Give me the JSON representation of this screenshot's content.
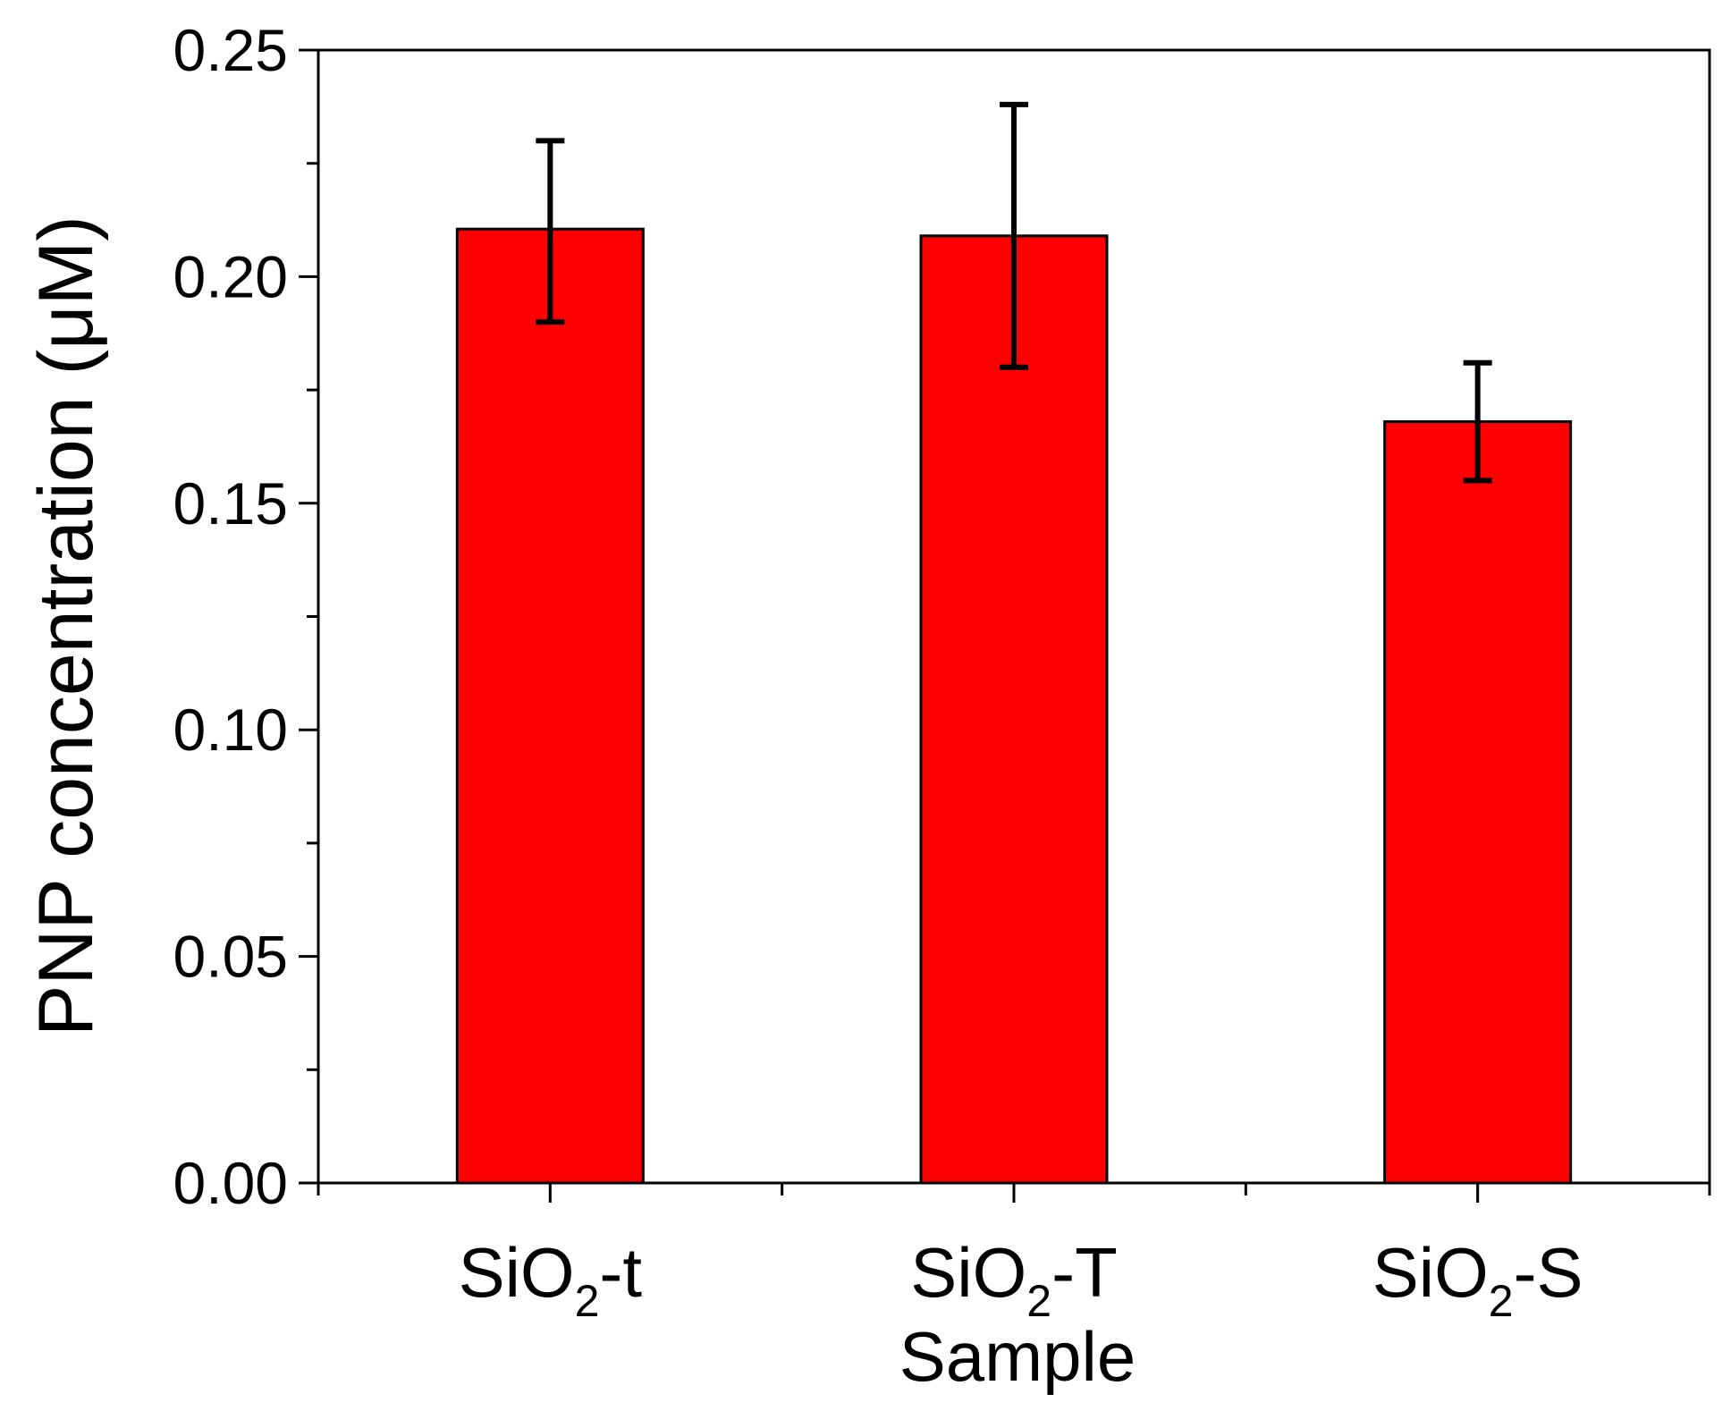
{
  "chart_data": {
    "type": "bar",
    "xlabel": "Sample",
    "ylabel": "PNP concentration (μM)",
    "categories": [
      {
        "base": "SiO",
        "sub": "2",
        "suffix": "-t"
      },
      {
        "base": "SiO",
        "sub": "2",
        "suffix": "-T"
      },
      {
        "base": "SiO",
        "sub": "2",
        "suffix": "-S"
      }
    ],
    "values": [
      0.2105,
      0.209,
      0.168
    ],
    "errors": [
      {
        "low": 0.19,
        "high": 0.23
      },
      {
        "low": 0.18,
        "high": 0.238
      },
      {
        "low": 0.155,
        "high": 0.181
      }
    ],
    "ylim": [
      0.0,
      0.25
    ],
    "yticks": [
      "0.00",
      "0.05",
      "0.10",
      "0.15",
      "0.20",
      "0.25"
    ],
    "ytick_values": [
      0.0,
      0.05,
      0.1,
      0.15,
      0.2,
      0.25
    ],
    "bar_color": "#ff0000",
    "error_color": "#000000",
    "grid": false
  }
}
